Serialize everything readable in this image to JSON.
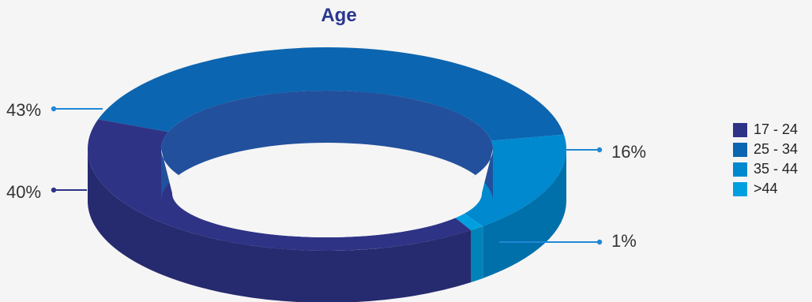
{
  "chart_data": {
    "type": "pie",
    "title": "Age",
    "categories": [
      "17 - 24",
      "25 - 34",
      "35 - 44",
      ">44"
    ],
    "values": [
      40,
      43,
      16,
      1
    ],
    "value_labels": [
      "40%",
      "43%",
      "16%",
      "1%"
    ],
    "unit": "%",
    "colors": [
      "#2e3386",
      "#0c65b0",
      "#0089cf",
      "#00a0e0"
    ],
    "legend_position": "right",
    "style": "3d-donut"
  }
}
